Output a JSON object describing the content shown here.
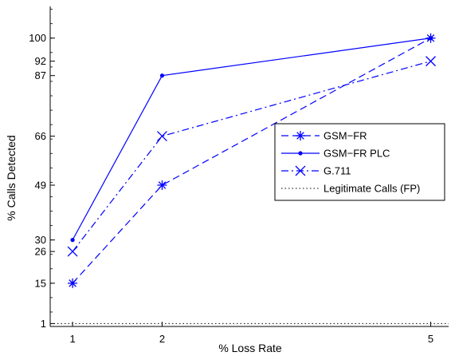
{
  "chart_data": {
    "type": "line",
    "x": [
      1,
      2,
      5
    ],
    "xlabel": "% Loss Rate",
    "ylabel": "% Calls Detected",
    "xlim": [
      0.75,
      5.2
    ],
    "ylim": [
      0,
      111
    ],
    "x_ticks": [
      1,
      2,
      5
    ],
    "x_tick_labels": [
      "1",
      "2",
      "5"
    ],
    "y_ticks": [
      1,
      15,
      26,
      30,
      49,
      66,
      87,
      92,
      100
    ],
    "y_tick_labels": [
      "1",
      "15",
      "26",
      "30",
      "49",
      "66",
      "87",
      "92",
      "100"
    ],
    "grid": false,
    "legend_position": "center-right",
    "series": [
      {
        "name": "GSM−FR",
        "values": [
          15,
          49,
          100
        ],
        "color": "#0000ff",
        "line_style": "dashed",
        "marker": "asterisk"
      },
      {
        "name": "GSM−FR PLC",
        "values": [
          30,
          87,
          100
        ],
        "color": "#0000ff",
        "line_style": "solid",
        "marker": "dot"
      },
      {
        "name": "G.711",
        "values": [
          26,
          66,
          92
        ],
        "color": "#0000ff",
        "line_style": "dashdot",
        "marker": "x"
      },
      {
        "name": "Legitimate Calls (FP)",
        "values": [
          1,
          1,
          1
        ],
        "color": "#000000",
        "line_style": "dotted",
        "marker": "none"
      }
    ]
  }
}
